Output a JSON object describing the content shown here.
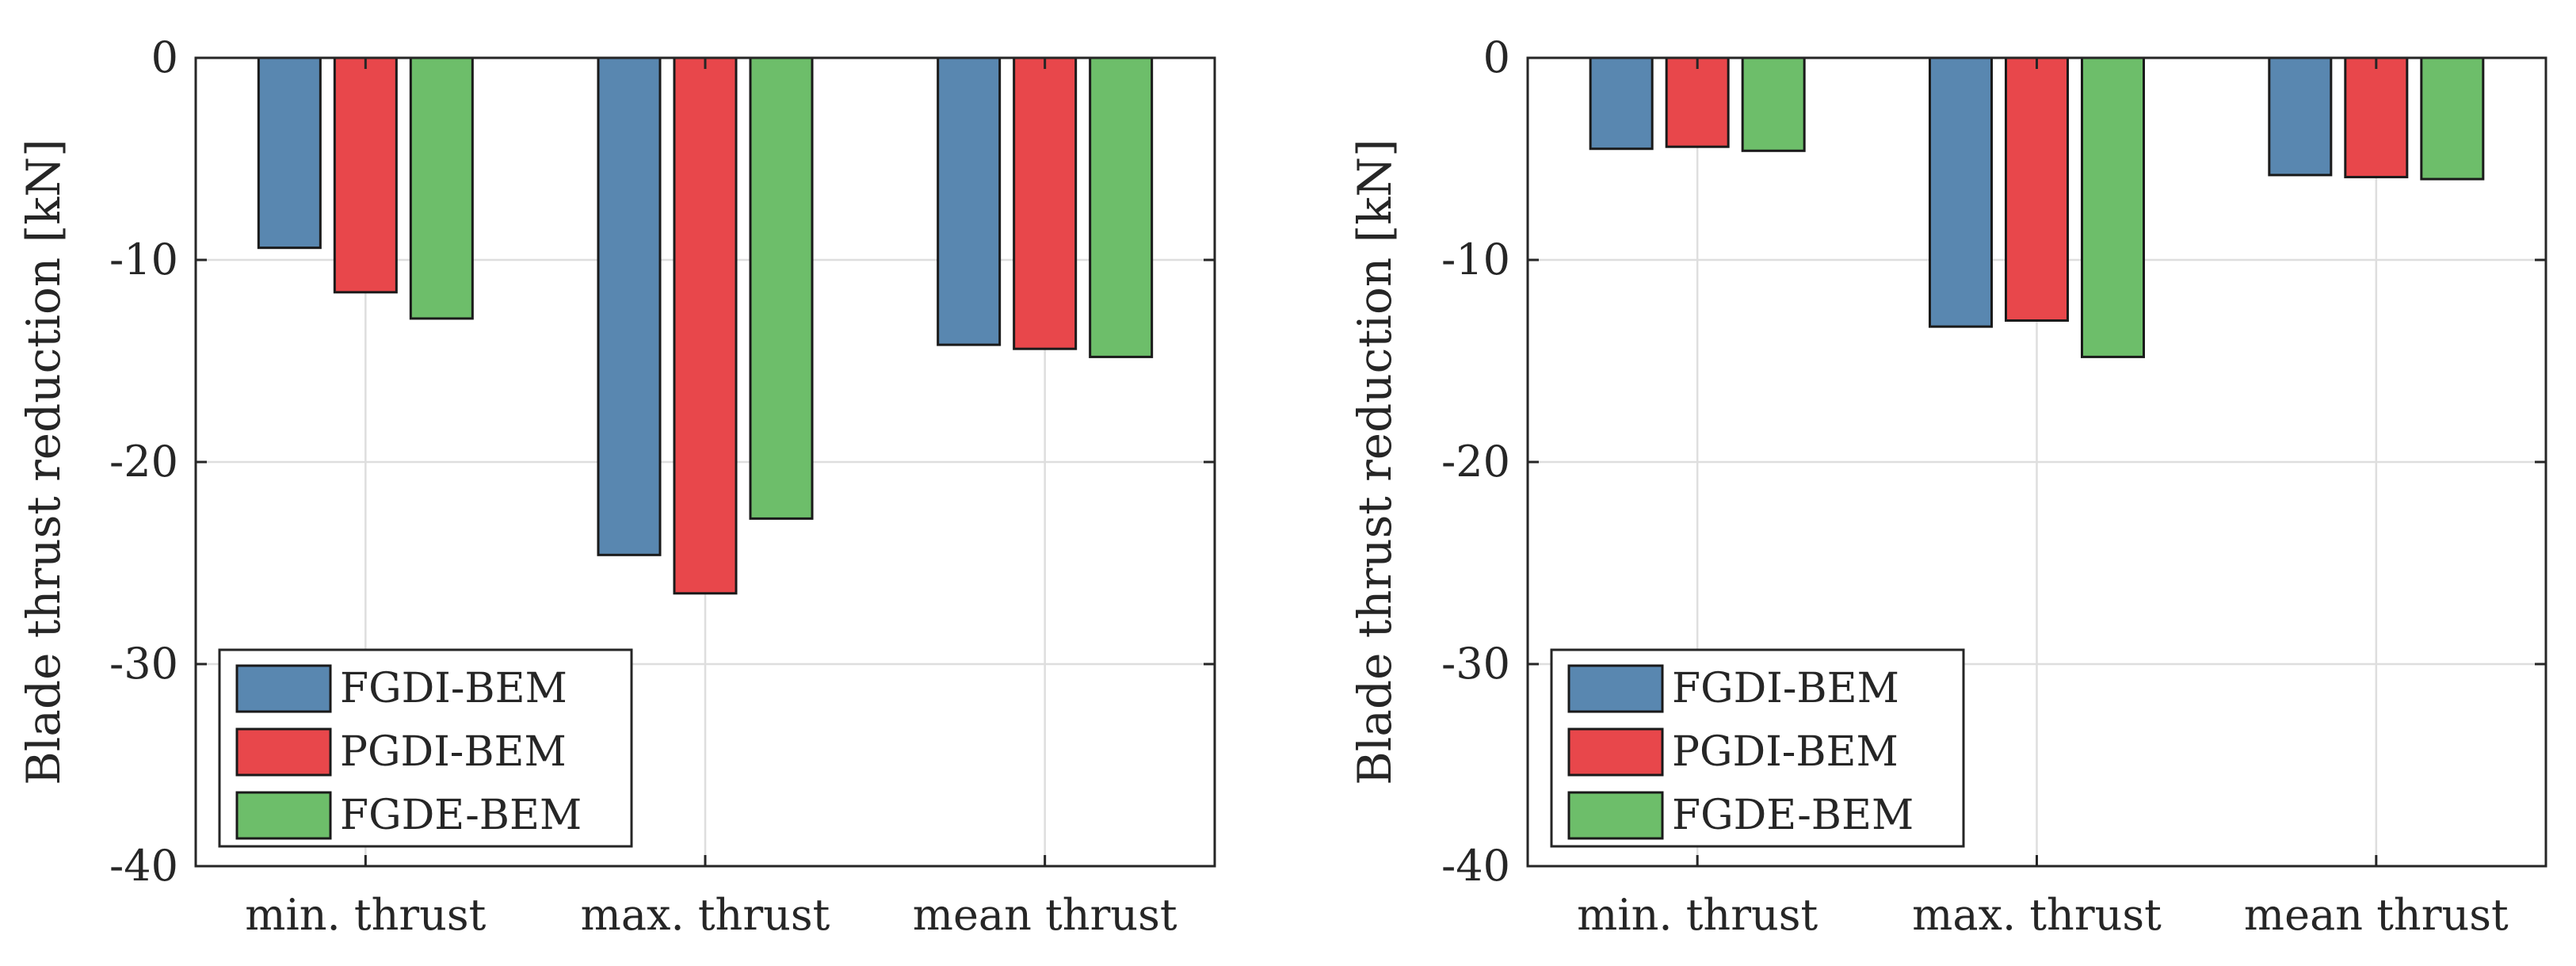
{
  "chart_data": [
    {
      "type": "bar",
      "title": "",
      "xlabel": "",
      "ylabel": "Blade thrust reduction [kN]",
      "ylim": [
        -40,
        0
      ],
      "yticks": [
        0,
        -10,
        -20,
        -30,
        -40
      ],
      "ytick_labels": [
        "0",
        "-10",
        "-20",
        "-30",
        "-40"
      ],
      "grid": true,
      "legend_position": "bottom-left",
      "categories": [
        "min. thrust",
        "max. thrust",
        "mean thrust"
      ],
      "series": [
        {
          "name": "FGDI-BEM",
          "color": "#5987b0",
          "values": [
            -9.4,
            -24.6,
            -14.2
          ]
        },
        {
          "name": "PGDI-BEM",
          "color": "#e8474b",
          "values": [
            -11.6,
            -26.5,
            -14.4
          ]
        },
        {
          "name": "FGDE-BEM",
          "color": "#6dbe6a",
          "values": [
            -12.9,
            -22.8,
            -14.8
          ]
        }
      ]
    },
    {
      "type": "bar",
      "title": "",
      "xlabel": "",
      "ylabel": "Blade thrust reduction [kN]",
      "ylim": [
        -40,
        0
      ],
      "yticks": [
        0,
        -10,
        -20,
        -30,
        -40
      ],
      "ytick_labels": [
        "0",
        "-10",
        "-20",
        "-30",
        "-40"
      ],
      "grid": true,
      "legend_position": "bottom-left",
      "categories": [
        "min. thrust",
        "max. thrust",
        "mean thrust"
      ],
      "series": [
        {
          "name": "FGDI-BEM",
          "color": "#5987b0",
          "values": [
            -4.5,
            -13.3,
            -5.8
          ]
        },
        {
          "name": "PGDI-BEM",
          "color": "#e8474b",
          "values": [
            -4.4,
            -13.0,
            -5.9
          ]
        },
        {
          "name": "FGDE-BEM",
          "color": "#6dbe6a",
          "values": [
            -4.6,
            -14.8,
            -6.0
          ]
        }
      ]
    }
  ]
}
